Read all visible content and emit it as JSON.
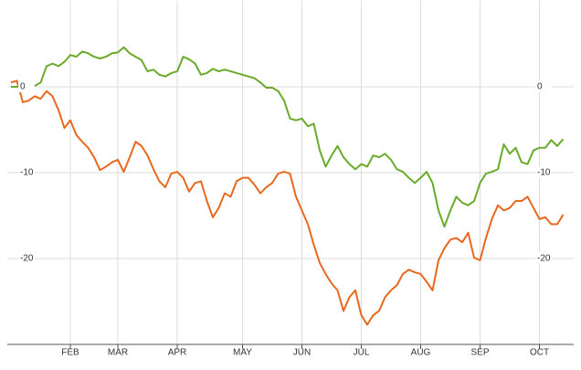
{
  "chart_data": {
    "type": "line",
    "categories": [
      null,
      null,
      null,
      null,
      null,
      null,
      null,
      null,
      null,
      null,
      "FEB",
      null,
      null,
      null,
      null,
      null,
      null,
      null,
      "MAR",
      null,
      null,
      null,
      null,
      null,
      null,
      null,
      null,
      null,
      "APR",
      null,
      null,
      null,
      null,
      null,
      null,
      null,
      null,
      null,
      null,
      "MAY",
      null,
      null,
      null,
      null,
      null,
      null,
      null,
      null,
      null,
      "JUN",
      null,
      null,
      null,
      null,
      null,
      null,
      null,
      null,
      null,
      "JUL",
      null,
      null,
      null,
      null,
      null,
      null,
      null,
      null,
      null,
      "AUG",
      null,
      null,
      null,
      null,
      null,
      null,
      null,
      null,
      null,
      "SEP",
      null,
      null,
      null,
      null,
      null,
      null,
      null,
      null,
      null,
      "OCT",
      null,
      null,
      null,
      null
    ],
    "series": [
      {
        "color": "#6aaa2a",
        "values": [
          0,
          0,
          0.3,
          0,
          0.1,
          0.5,
          2.4,
          2.7,
          2.4,
          2.9,
          3.7,
          3.5,
          4.1,
          3.9,
          3.5,
          3.3,
          3.5,
          3.9,
          4.0,
          4.6,
          3.9,
          3.5,
          3.1,
          1.8,
          2.0,
          1.4,
          1.2,
          1.6,
          1.8,
          3.5,
          3.2,
          2.7,
          1.4,
          1.6,
          2.1,
          1.8,
          2.0,
          1.8,
          1.6,
          1.4,
          1.2,
          1.0,
          0.5,
          -0.1,
          -0.1,
          -0.5,
          -1.6,
          -3.7,
          -3.9,
          -3.7,
          -4.6,
          -4.3,
          -7.4,
          -9.3,
          -8.0,
          -6.9,
          -8.2,
          -9.0,
          -9.6,
          -9.0,
          -9.3,
          -8.0,
          -8.2,
          -7.8,
          -8.5,
          -9.6,
          -9.9,
          -10.6,
          -11.2,
          -10.6,
          -9.9,
          -11.2,
          -14.4,
          -16.3,
          -14.4,
          -12.8,
          -13.5,
          -13.8,
          -13.3,
          -11.2,
          -10.1,
          -9.9,
          -9.6,
          -6.7,
          -7.8,
          -7.1,
          -8.8,
          -9.0,
          -7.4,
          -7.1,
          -7.1,
          -6.2,
          -6.9,
          -6.1
        ]
      },
      {
        "color": "#e8691e",
        "values": [
          0.5,
          0.7,
          -1.8,
          -1.6,
          -1.1,
          -1.4,
          -0.5,
          -1.1,
          -2.7,
          -4.8,
          -3.9,
          -5.6,
          -6.4,
          -7.1,
          -8.2,
          -9.7,
          -9.3,
          -8.8,
          -8.5,
          -9.9,
          -8.2,
          -6.4,
          -6.9,
          -8.0,
          -9.6,
          -11.0,
          -11.7,
          -10.1,
          -9.9,
          -10.6,
          -12.2,
          -11.2,
          -11.0,
          -13.3,
          -15.2,
          -14.1,
          -12.4,
          -12.8,
          -11.0,
          -10.6,
          -10.6,
          -11.4,
          -12.4,
          -11.7,
          -11.2,
          -10.1,
          -9.9,
          -10.1,
          -12.8,
          -14.4,
          -16.0,
          -18.4,
          -20.5,
          -21.8,
          -22.9,
          -23.7,
          -26.1,
          -24.5,
          -23.7,
          -26.6,
          -27.7,
          -26.6,
          -26.1,
          -24.5,
          -23.7,
          -23.1,
          -21.8,
          -21.3,
          -21.6,
          -21.8,
          -22.7,
          -23.7,
          -20.2,
          -18.8,
          -17.8,
          -17.6,
          -18.1,
          -17.0,
          -19.9,
          -20.2,
          -17.6,
          -15.4,
          -13.8,
          -14.4,
          -14.1,
          -13.3,
          -13.3,
          -12.8,
          -14.1,
          -15.4,
          -15.2,
          -16.0,
          -16.0,
          -14.9
        ]
      }
    ],
    "ylim": [
      -30,
      10
    ],
    "yticks": [
      0,
      -10,
      -20
    ],
    "grid": true
  }
}
